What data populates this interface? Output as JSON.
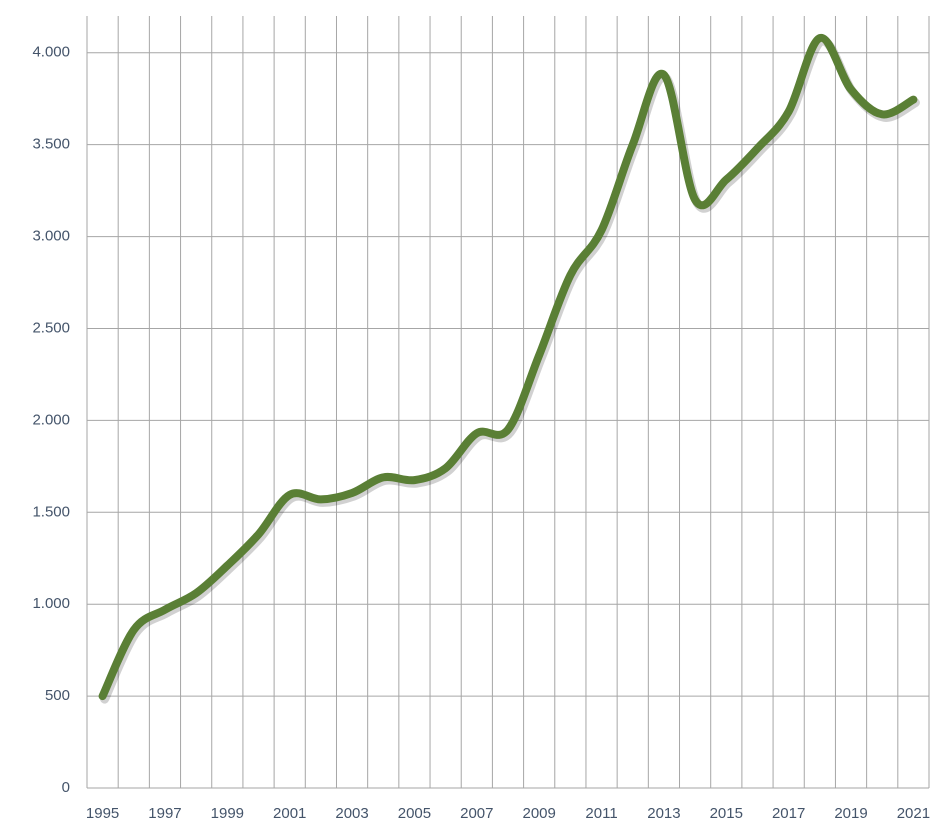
{
  "chart_data": {
    "type": "line",
    "categories": [
      "1995",
      null,
      "1997",
      null,
      "1999",
      null,
      "2001",
      null,
      "2003",
      null,
      "2005",
      null,
      "2007",
      null,
      "2009",
      null,
      "2011",
      null,
      "2013",
      null,
      "2015",
      null,
      "2017",
      null,
      "2019",
      null,
      "2021"
    ],
    "values": [
      500,
      860,
      970,
      1060,
      1210,
      1380,
      1595,
      1570,
      1605,
      1690,
      1675,
      1740,
      1930,
      1950,
      2355,
      2790,
      3035,
      3500,
      3880,
      3200,
      3310,
      3480,
      3680,
      4080,
      3800,
      3665,
      3745
    ],
    "color": "#5a7f35",
    "ylim": [
      0,
      4200
    ],
    "yticks": [
      0,
      500,
      {
        "value": 1000,
        "label": "1.000"
      },
      {
        "value": 1500,
        "label": "1.500"
      },
      {
        "value": 2000,
        "label": "2.000"
      },
      {
        "value": 2500,
        "label": "2.500"
      },
      {
        "value": 3000,
        "label": "3.000"
      },
      {
        "value": 3500,
        "label": "3.500"
      },
      {
        "value": 4000,
        "label": "4.000"
      }
    ],
    "grid": true
  }
}
